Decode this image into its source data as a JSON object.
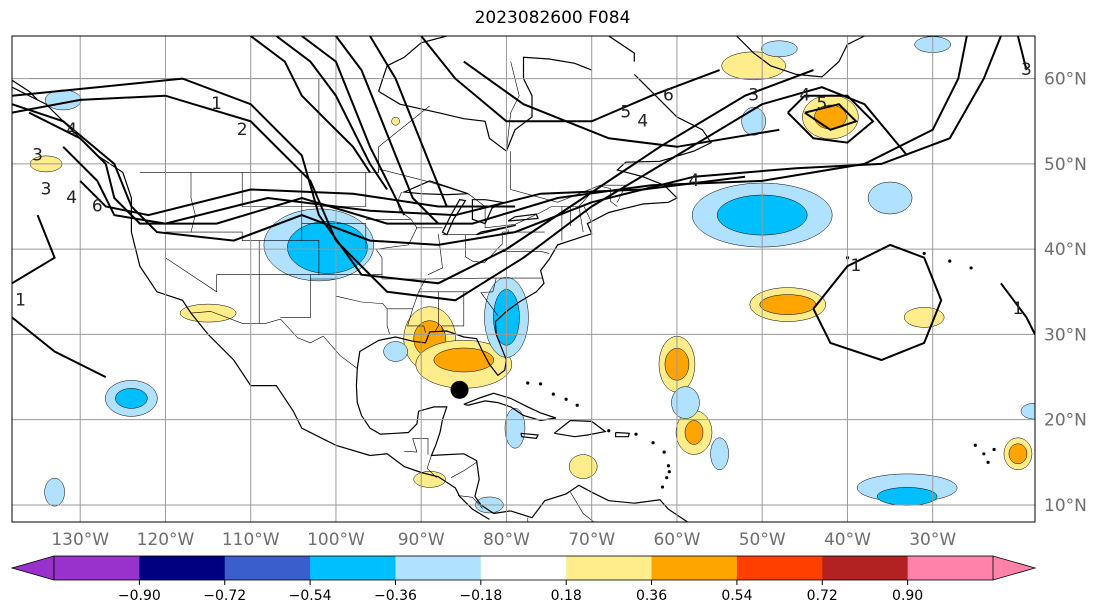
{
  "title": "2023082600 F084",
  "map": {
    "lon_range": [
      -138,
      -18
    ],
    "lat_range": [
      8,
      65
    ],
    "lon_ticks": [
      {
        "value": -130,
        "label": "130°W"
      },
      {
        "value": -120,
        "label": "120°W"
      },
      {
        "value": -110,
        "label": "110°W"
      },
      {
        "value": -100,
        "label": "100°W"
      },
      {
        "value": -90,
        "label": "90°W"
      },
      {
        "value": -80,
        "label": "80°W"
      },
      {
        "value": -70,
        "label": "70°W"
      },
      {
        "value": -60,
        "label": "60°W"
      },
      {
        "value": -50,
        "label": "50°W"
      },
      {
        "value": -40,
        "label": "40°W"
      },
      {
        "value": -30,
        "label": "30°W"
      }
    ],
    "lat_ticks": [
      {
        "value": 60,
        "label": "60°N"
      },
      {
        "value": 50,
        "label": "50°N"
      },
      {
        "value": 40,
        "label": "40°N"
      },
      {
        "value": 30,
        "label": "30°N"
      },
      {
        "value": 20,
        "label": "20°N"
      },
      {
        "value": 10,
        "label": "10°N"
      }
    ],
    "storm_marker": {
      "lon": -85.5,
      "lat": 23.5
    },
    "contour_labels": [
      {
        "text": "1",
        "lon": -114,
        "lat": 57
      },
      {
        "text": "2",
        "lon": -111,
        "lat": 54
      },
      {
        "text": "3",
        "lon": -135,
        "lat": 51
      },
      {
        "text": "4",
        "lon": -131,
        "lat": 54
      },
      {
        "text": "3",
        "lon": -134,
        "lat": 47
      },
      {
        "text": "4",
        "lon": -131,
        "lat": 46
      },
      {
        "text": "6",
        "lon": -128,
        "lat": 45
      },
      {
        "text": "5",
        "lon": -66,
        "lat": 56
      },
      {
        "text": "4",
        "lon": -64,
        "lat": 55
      },
      {
        "text": "6",
        "lon": -61,
        "lat": 58
      },
      {
        "text": "3",
        "lon": -51,
        "lat": 58
      },
      {
        "text": "4",
        "lon": -45,
        "lat": 58
      },
      {
        "text": "5",
        "lon": -43,
        "lat": 57
      },
      {
        "text": "4",
        "lon": -58,
        "lat": 48
      },
      {
        "text": "1",
        "lon": -39,
        "lat": 38
      },
      {
        "text": "1",
        "lon": -137,
        "lat": 34
      },
      {
        "text": "1",
        "lon": -20,
        "lat": 33
      },
      {
        "text": "3",
        "lon": -19,
        "lat": 61
      }
    ]
  },
  "colorbar": {
    "colors": [
      "#9932cc",
      "#000080",
      "#3a5fcd",
      "#00bfff",
      "#b0e2ff",
      "#ffffff",
      "#ffec8b",
      "#ffa500",
      "#ff3f00",
      "#b22222",
      "#ff82ab"
    ],
    "under_color": "#9932cc",
    "over_color": "#ff82ab",
    "tick_labels": [
      "−0.90",
      "−0.72",
      "−0.54",
      "−0.36",
      "−0.18",
      "0.18",
      "0.36",
      "0.54",
      "0.72",
      "0.90"
    ]
  },
  "anomaly_colors": {
    "light_blue": "#b0e2ff",
    "blue": "#00bfff",
    "dark_blue": "#3a5fcd",
    "light_yellow": "#ffec8b",
    "orange": "#ffa500"
  }
}
